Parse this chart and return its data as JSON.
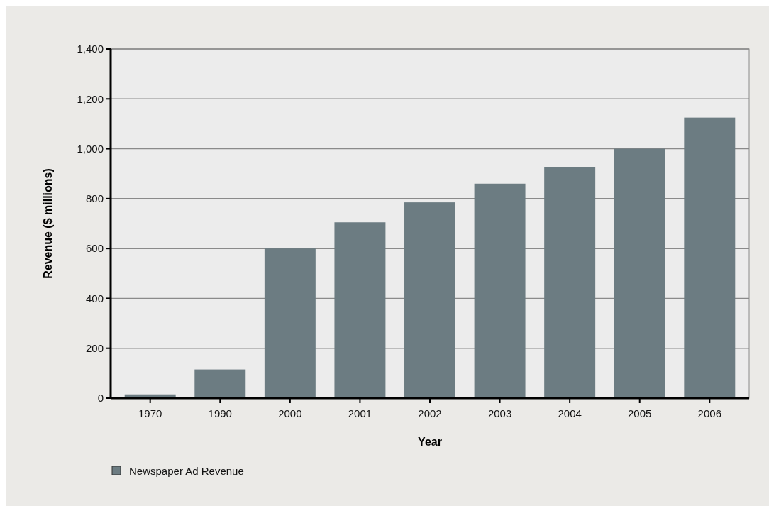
{
  "chart_data": {
    "type": "bar",
    "xlabel": "Year",
    "ylabel": "Revenue ($ millions)",
    "categories": [
      "1970",
      "1990",
      "2000",
      "2001",
      "2002",
      "2003",
      "2004",
      "2005",
      "2006"
    ],
    "series": [
      {
        "name": "Newspaper Ad Revenue",
        "color": "#6c7c82",
        "values": [
          15,
          115,
          600,
          705,
          785,
          860,
          927,
          1000,
          1125
        ]
      }
    ],
    "ylim": [
      0,
      1400
    ],
    "yticks": [
      0,
      {
        "value": 200,
        "label": "200"
      },
      {
        "value": 400,
        "label": "400"
      },
      {
        "value": 600,
        "label": "600"
      },
      {
        "value": 800,
        "label": "800"
      },
      {
        "value": 1000,
        "label": "1,000"
      },
      {
        "value": 1200,
        "label": "1,200"
      },
      {
        "value": 1400,
        "label": "1,400"
      }
    ],
    "grid": "y",
    "legend": "bottom left"
  }
}
